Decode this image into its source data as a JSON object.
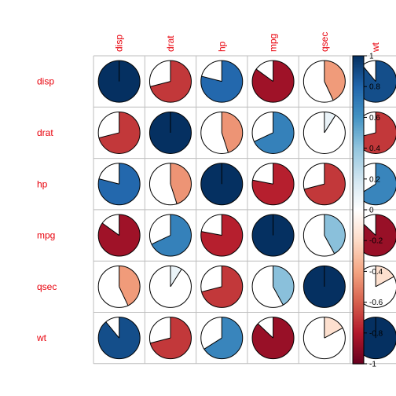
{
  "chart_data": {
    "type": "heatmap",
    "style": "corrplot-pie",
    "variables": [
      "disp",
      "drat",
      "hp",
      "mpg",
      "qsec",
      "wt"
    ],
    "matrix": [
      [
        1.0,
        -0.71,
        0.79,
        -0.85,
        -0.43,
        0.89
      ],
      [
        -0.71,
        1.0,
        -0.45,
        0.68,
        0.09,
        -0.71
      ],
      [
        0.79,
        -0.45,
        1.0,
        -0.78,
        -0.71,
        0.66
      ],
      [
        -0.85,
        0.68,
        -0.78,
        1.0,
        0.42,
        -0.87
      ],
      [
        -0.43,
        0.09,
        -0.71,
        0.42,
        1.0,
        -0.17
      ],
      [
        0.89,
        -0.71,
        0.66,
        -0.87,
        -0.17,
        1.0
      ]
    ],
    "colorbar": {
      "range": [
        -1,
        1
      ],
      "ticks": [
        "1",
        "0.8",
        "0.6",
        "0.4",
        "0.2",
        "0",
        "-0.2",
        "-0.4",
        "-0.6",
        "-0.8",
        "-1"
      ],
      "tick_values": [
        1,
        0.8,
        0.6,
        0.4,
        0.2,
        0,
        -0.2,
        -0.4,
        -0.6,
        -0.8,
        -1
      ],
      "placement": "right"
    },
    "colors": {
      "label": "#e8000b",
      "grid": "#bebebe",
      "stops": [
        "#67001f",
        "#b2182b",
        "#d6604d",
        "#f4a582",
        "#fddbc7",
        "#ffffff",
        "#d1e5f0",
        "#92c5de",
        "#4393c3",
        "#2166ac",
        "#053061"
      ]
    },
    "grid": true
  }
}
